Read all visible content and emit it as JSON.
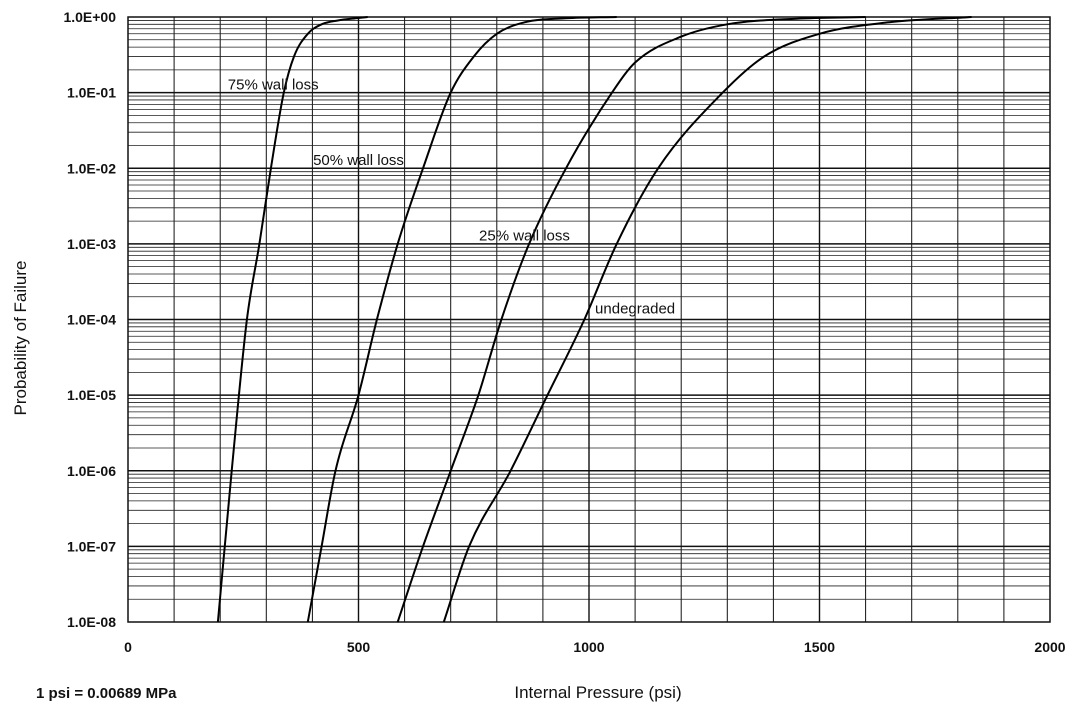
{
  "chart_data": {
    "type": "line",
    "xlabel": "Internal Pressure (psi)",
    "ylabel": "Probability of Failure",
    "xlim": [
      0,
      2000
    ],
    "ylim": [
      1e-08,
      1
    ],
    "y_scale": "log",
    "grid": true,
    "x_ticks": [
      "0",
      "500",
      "1000",
      "1500",
      "2000"
    ],
    "y_ticks": [
      "1.0E-08",
      "1.0E-07",
      "1.0E-06",
      "1.0E-05",
      "1.0E-04",
      "1.0E-03",
      "1.0E-02",
      "1.0E-01",
      "1.0E+00"
    ],
    "note": "1 psi = 0.00689 MPa",
    "series": [
      {
        "name": "75% wall loss",
        "points": [
          [
            195,
            1e-08
          ],
          [
            225,
            1e-06
          ],
          [
            258,
            0.0001
          ],
          [
            285,
            0.001
          ],
          [
            310,
            0.01
          ],
          [
            338,
            0.1
          ],
          [
            360,
            0.3
          ],
          [
            390,
            0.6
          ],
          [
            420,
            0.8
          ],
          [
            455,
            0.9
          ],
          [
            500,
            0.97
          ],
          [
            520,
            1
          ]
        ]
      },
      {
        "name": "50% wall loss",
        "points": [
          [
            390,
            1e-08
          ],
          [
            420,
            1e-07
          ],
          [
            450,
            1e-06
          ],
          [
            500,
            1e-05
          ],
          [
            540,
            0.0001
          ],
          [
            585,
            0.001
          ],
          [
            640,
            0.01
          ],
          [
            700,
            0.1
          ],
          [
            750,
            0.3
          ],
          [
            800,
            0.6
          ],
          [
            860,
            0.85
          ],
          [
            950,
            0.96
          ],
          [
            1060,
            1
          ]
        ]
      },
      {
        "name": "25% wall loss",
        "points": [
          [
            585,
            1e-08
          ],
          [
            640,
            1e-07
          ],
          [
            700,
            1e-06
          ],
          [
            760,
            1e-05
          ],
          [
            810,
            0.0001
          ],
          [
            870,
            0.001
          ],
          [
            950,
            0.01
          ],
          [
            1050,
            0.1
          ],
          [
            1100,
            0.25
          ],
          [
            1200,
            0.55
          ],
          [
            1300,
            0.8
          ],
          [
            1450,
            0.95
          ],
          [
            1600,
            1
          ]
        ]
      },
      {
        "name": "undegraded",
        "points": [
          [
            685,
            1e-08
          ],
          [
            740,
            1e-07
          ],
          [
            830,
            1e-06
          ],
          [
            910,
            1e-05
          ],
          [
            990,
            0.0001
          ],
          [
            1060,
            0.001
          ],
          [
            1150,
            0.01
          ],
          [
            1290,
            0.1
          ],
          [
            1380,
            0.3
          ],
          [
            1500,
            0.6
          ],
          [
            1650,
            0.85
          ],
          [
            1830,
            1
          ]
        ]
      }
    ]
  }
}
